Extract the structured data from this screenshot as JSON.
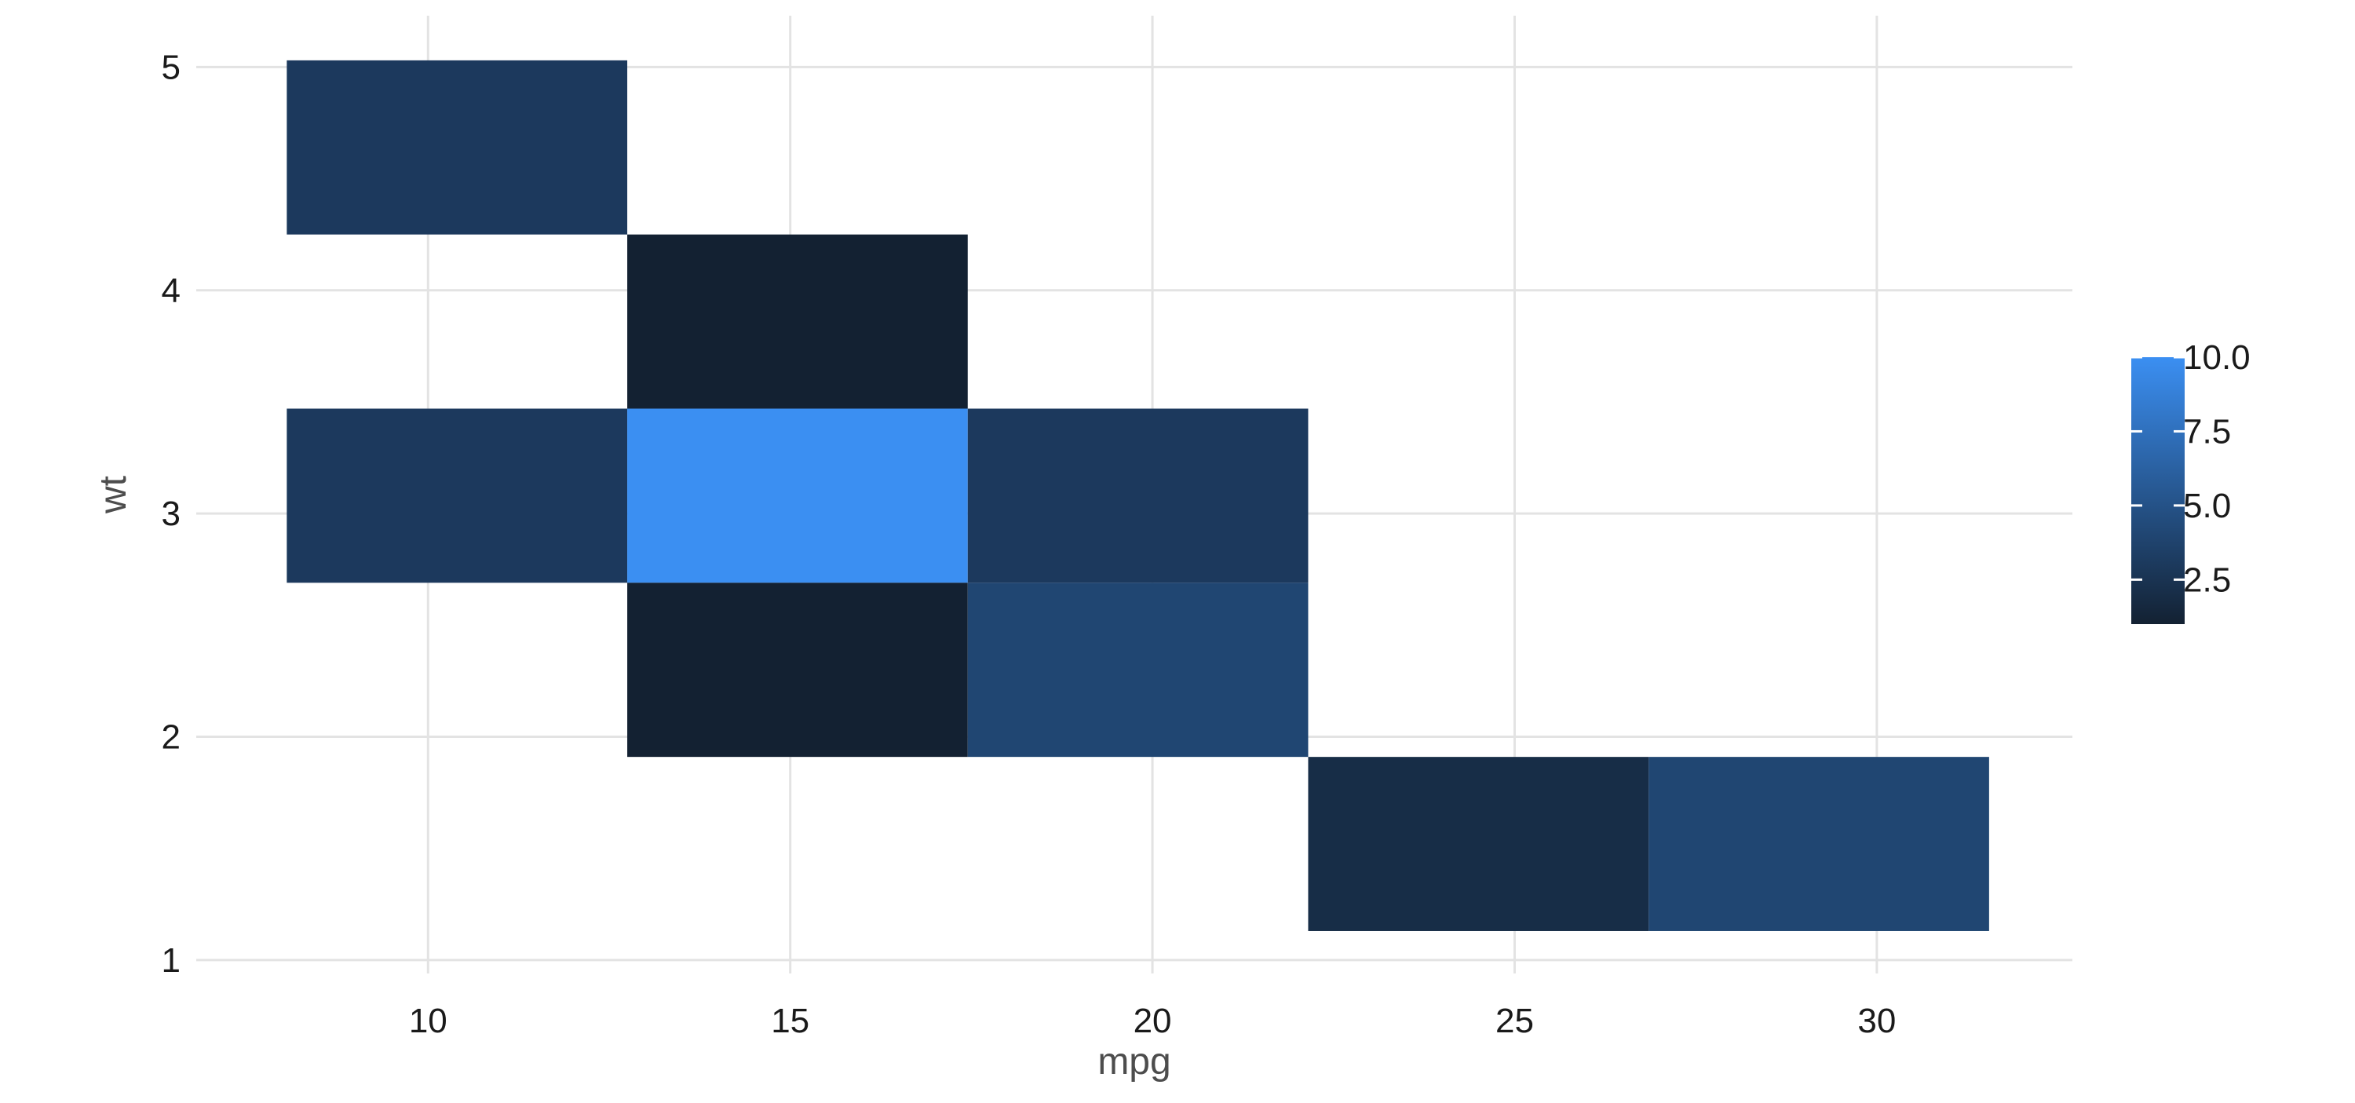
{
  "chart_data": {
    "type": "heatmap",
    "title": "",
    "xlabel": "mpg",
    "ylabel": "wt",
    "x_ticks": [
      10,
      15,
      20,
      25,
      30
    ],
    "y_ticks": [
      1,
      2,
      3,
      4,
      5
    ],
    "xlim": [
      6.8,
      32.7
    ],
    "ylim": [
      0.94,
      5.23
    ],
    "grid": true,
    "bin_width_x": 4.7,
    "bin_height_y": 0.78,
    "cells": [
      {
        "x": 10.4,
        "y": 4.64,
        "count": 3
      },
      {
        "x": 15.1,
        "y": 3.86,
        "count": 1
      },
      {
        "x": 10.4,
        "y": 3.08,
        "count": 3
      },
      {
        "x": 15.1,
        "y": 3.08,
        "count": 10
      },
      {
        "x": 19.8,
        "y": 3.08,
        "count": 3
      },
      {
        "x": 15.1,
        "y": 2.3,
        "count": 1
      },
      {
        "x": 19.8,
        "y": 2.3,
        "count": 4
      },
      {
        "x": 24.5,
        "y": 1.52,
        "count": 2
      },
      {
        "x": 29.2,
        "y": 1.52,
        "count": 4
      }
    ],
    "legend": {
      "position": "right",
      "title": "",
      "min": 1,
      "max": 10,
      "ticks": [
        2.5,
        5.0,
        7.5,
        10.0
      ],
      "tick_labels": [
        "2.5",
        "5.0",
        "7.5",
        "10.0"
      ],
      "low_color": "#132132",
      "high_color": "#3b8ff2"
    }
  }
}
